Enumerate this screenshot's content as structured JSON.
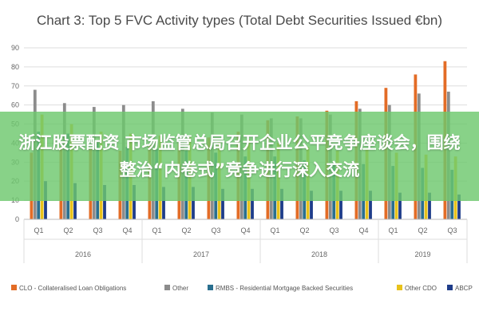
{
  "chart_data": {
    "type": "bar",
    "title": "Chart 3: Top 5 FVC Activity types (Total Debt Securities Issued €bn)",
    "ylim": [
      0,
      90
    ],
    "yticks": [
      0,
      10,
      20,
      30,
      40,
      50,
      60,
      70,
      80,
      90
    ],
    "grid": true,
    "legend_position": "bottom",
    "categories": [
      "Q1",
      "Q2",
      "Q3",
      "Q4",
      "Q1",
      "Q2",
      "Q3",
      "Q4",
      "Q1",
      "Q2",
      "Q3",
      "Q4",
      "Q1",
      "Q2",
      "Q3"
    ],
    "groups": [
      {
        "label": "2016",
        "count": 4
      },
      {
        "label": "2017",
        "count": 4
      },
      {
        "label": "2018",
        "count": 4
      },
      {
        "label": "2019",
        "count": 3
      }
    ],
    "series": [
      {
        "name": "CLO - Collateralised Loan Obligations",
        "color": "#e36c26",
        "values": [
          35,
          38,
          37,
          36,
          39,
          40,
          43,
          46,
          52,
          54,
          57,
          62,
          69,
          76,
          83
        ]
      },
      {
        "name": "Other",
        "color": "#8c8c8c",
        "values": [
          68,
          61,
          59,
          60,
          62,
          58,
          56,
          55,
          53,
          53,
          55,
          58,
          60,
          66,
          67
        ]
      },
      {
        "name": "RMBS - Residential Mortgage Backed Securities",
        "color": "#2a6f8f",
        "values": [
          46,
          45,
          40,
          38,
          37,
          36,
          35,
          33,
          33,
          31,
          30,
          29,
          28,
          27,
          26
        ]
      },
      {
        "name": "Other CDO",
        "color": "#e8c21b",
        "values": [
          55,
          50,
          46,
          45,
          44,
          43,
          41,
          42,
          40,
          38,
          36,
          37,
          35,
          34,
          33
        ]
      },
      {
        "name": "ABCP",
        "color": "#1f3d8a",
        "values": [
          20,
          19,
          18,
          18,
          17,
          17,
          16,
          16,
          16,
          15,
          15,
          15,
          14,
          14,
          13
        ]
      }
    ]
  },
  "banner": {
    "text": "浙江股票配资 市场监管总局召开企业公平竞争座谈会，围绕整治“内卷式”竞争进行深入交流"
  }
}
